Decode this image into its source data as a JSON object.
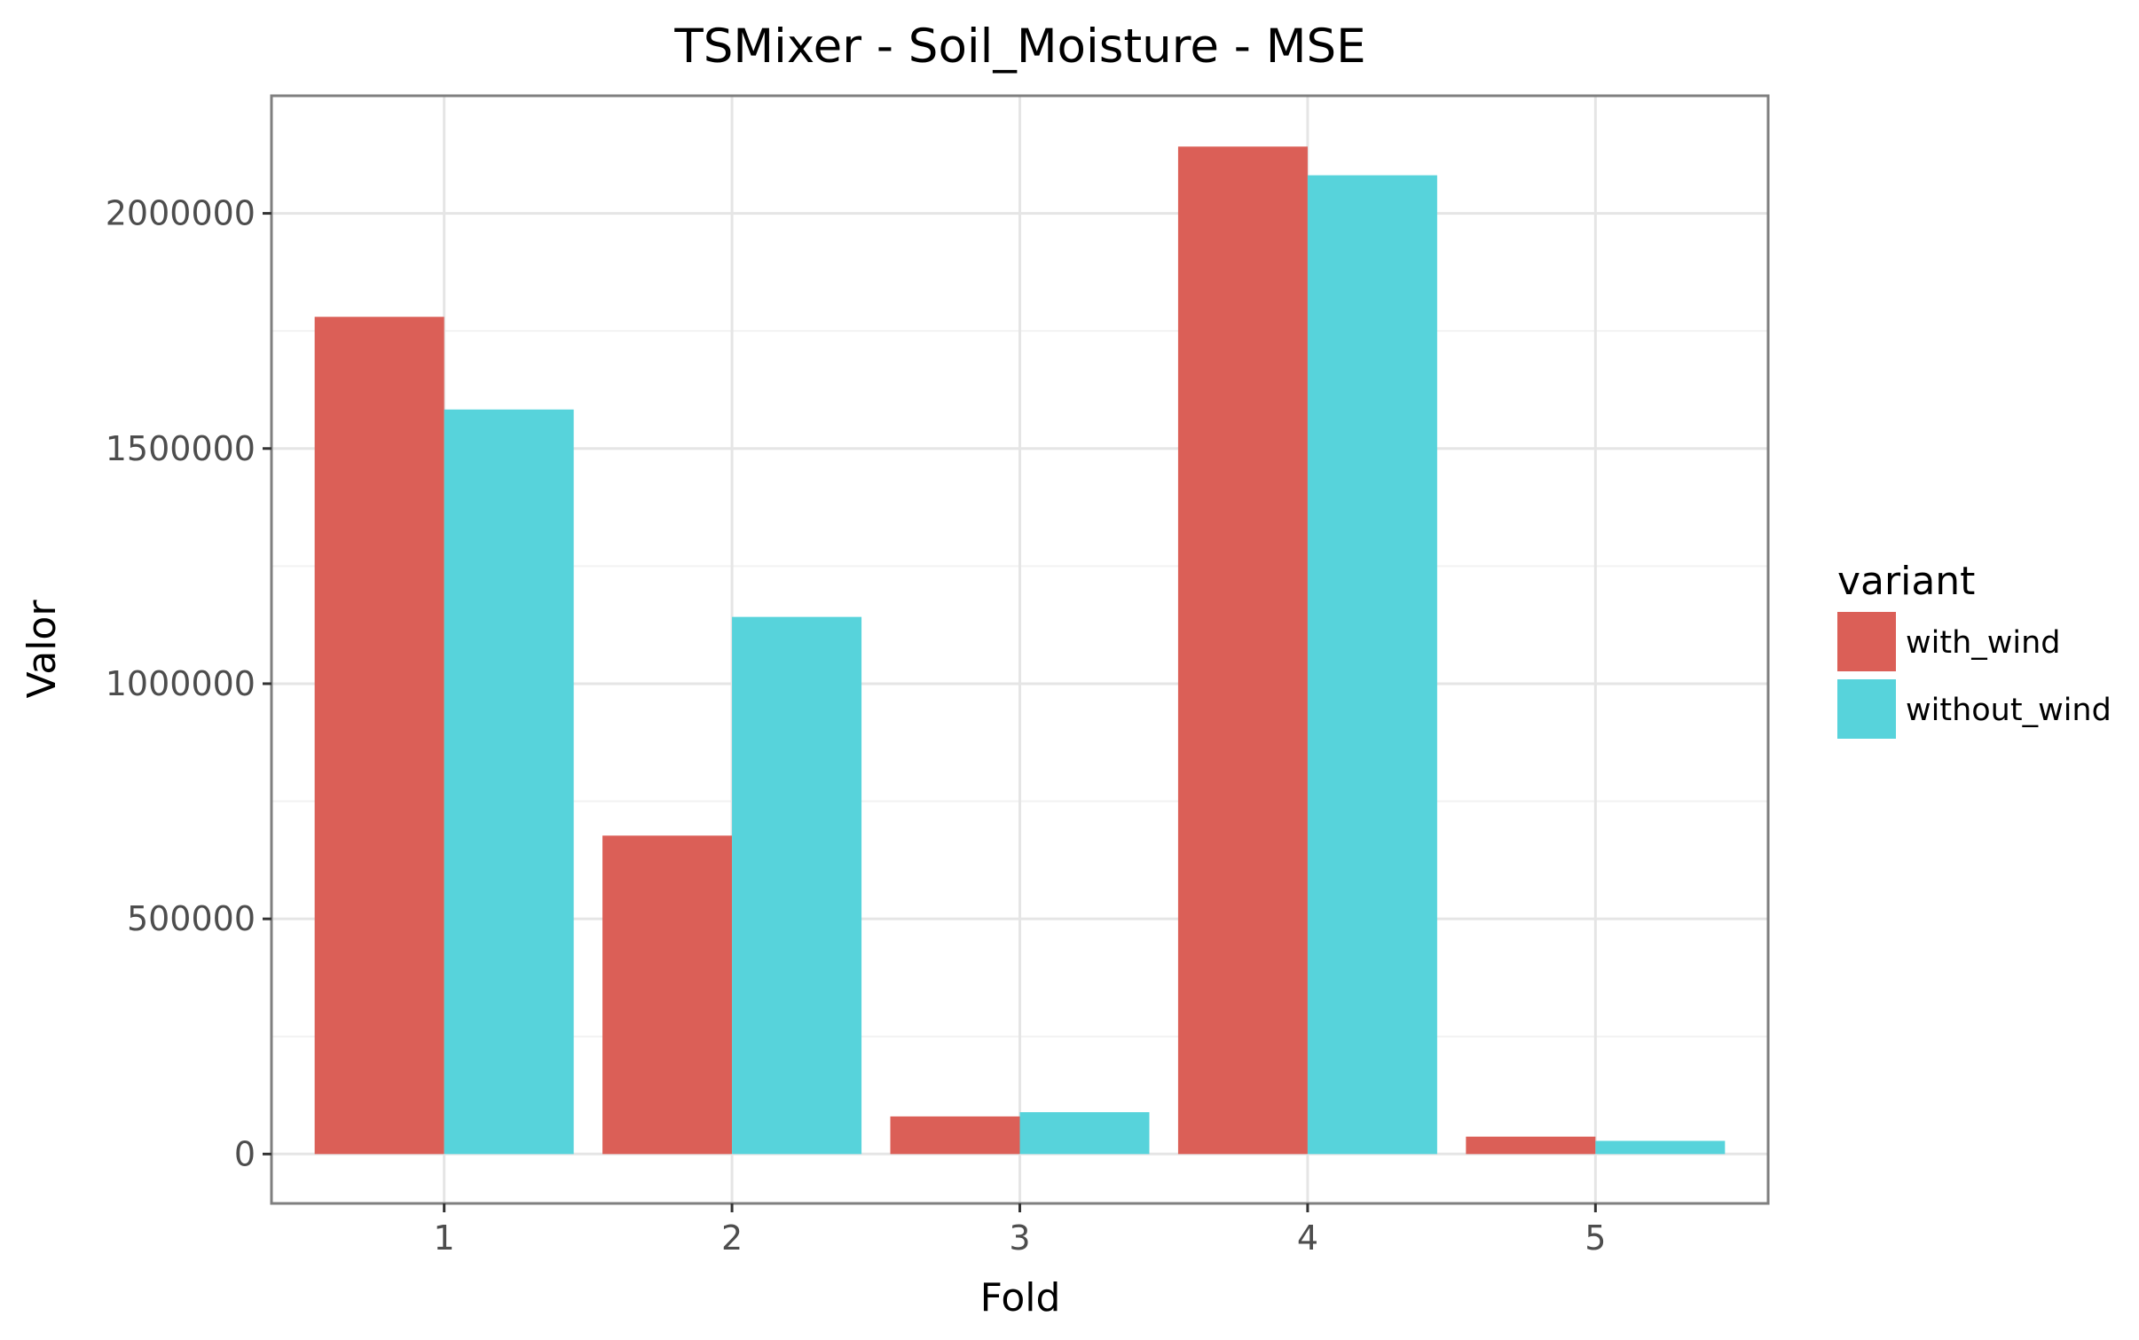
{
  "chart_data": {
    "type": "bar",
    "title": "TSMixer - Soil_Moisture - MSE",
    "xlabel": "Fold",
    "ylabel": "Valor",
    "categories": [
      "1",
      "2",
      "3",
      "4",
      "5"
    ],
    "series": [
      {
        "name": "with_wind",
        "color": "#db5f57",
        "values": [
          1780000,
          677000,
          80000,
          2142000,
          37000
        ]
      },
      {
        "name": "without_wind",
        "color": "#57d3db",
        "values": [
          1583000,
          1142000,
          89000,
          2081000,
          28000
        ]
      }
    ],
    "ylim": [
      -105000,
      2250000
    ],
    "yticks": [
      0,
      500000,
      1000000,
      1500000,
      2000000
    ],
    "ytick_labels": [
      "0",
      "500000",
      "1000000",
      "1500000",
      "2000000"
    ],
    "grid": true,
    "legend": {
      "title": "variant",
      "position": "right"
    }
  }
}
